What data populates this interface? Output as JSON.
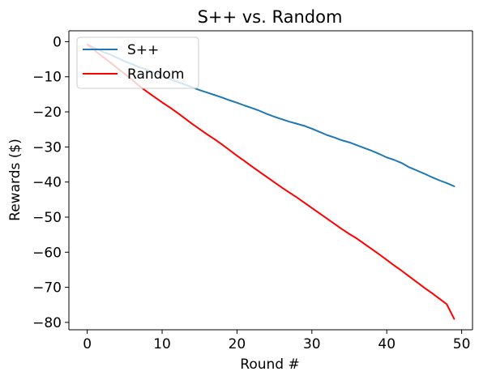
{
  "chart_data": {
    "type": "line",
    "title": "S++ vs. Random",
    "xlabel": "Round #",
    "ylabel": "Rewards ($)",
    "xlim": [
      -2.45,
      51.45
    ],
    "ylim": [
      -82.1,
      3.1
    ],
    "xticks": [
      0,
      10,
      20,
      30,
      40,
      50
    ],
    "xtick_labels": [
      "0",
      "10",
      "20",
      "30",
      "40",
      "50"
    ],
    "yticks": [
      0,
      -10,
      -20,
      -30,
      -40,
      -50,
      -60,
      -70,
      -80
    ],
    "ytick_labels": [
      "0",
      "−10",
      "−20",
      "−30",
      "−40",
      "−50",
      "−60",
      "−70",
      "−80"
    ],
    "grid": false,
    "legend_position": "upper-left",
    "x": [
      0,
      1,
      2,
      3,
      4,
      5,
      6,
      7,
      8,
      9,
      10,
      11,
      12,
      13,
      14,
      15,
      16,
      17,
      18,
      19,
      20,
      21,
      22,
      23,
      24,
      25,
      26,
      27,
      28,
      29,
      30,
      31,
      32,
      33,
      34,
      35,
      36,
      37,
      38,
      39,
      40,
      41,
      42,
      43,
      44,
      45,
      46,
      47,
      48,
      49
    ],
    "series": [
      {
        "name": "S++",
        "color": "#1f77b4",
        "values": [
          -0.8,
          -1.8,
          -2.8,
          -3.6,
          -4.6,
          -5.6,
          -6.4,
          -7.3,
          -8.0,
          -8.9,
          -9.7,
          -10.6,
          -11.4,
          -12.2,
          -13.0,
          -13.8,
          -14.5,
          -15.2,
          -15.9,
          -16.7,
          -17.4,
          -18.2,
          -18.9,
          -19.7,
          -20.6,
          -21.4,
          -22.1,
          -22.8,
          -23.4,
          -24.0,
          -24.8,
          -25.7,
          -26.6,
          -27.3,
          -28.1,
          -28.7,
          -29.5,
          -30.3,
          -31.1,
          -32.0,
          -33.0,
          -33.7,
          -34.6,
          -35.8,
          -36.7,
          -37.6,
          -38.6,
          -39.5,
          -40.3,
          -41.2
        ]
      },
      {
        "name": "Random",
        "color": "#ff0000",
        "values": [
          -0.8,
          -2.5,
          -4.2,
          -5.8,
          -7.5,
          -9.2,
          -10.9,
          -12.7,
          -14.3,
          -15.8,
          -17.3,
          -18.7,
          -20.2,
          -21.8,
          -23.4,
          -24.9,
          -26.4,
          -27.8,
          -29.3,
          -30.9,
          -32.5,
          -34.0,
          -35.6,
          -37.1,
          -38.6,
          -40.1,
          -41.6,
          -43.0,
          -44.4,
          -45.9,
          -47.4,
          -48.9,
          -50.4,
          -51.9,
          -53.4,
          -54.8,
          -56.1,
          -57.6,
          -59.1,
          -60.6,
          -62.2,
          -63.8,
          -65.3,
          -66.9,
          -68.5,
          -70.1,
          -71.6,
          -73.2,
          -74.8,
          -79.0
        ]
      }
    ]
  }
}
